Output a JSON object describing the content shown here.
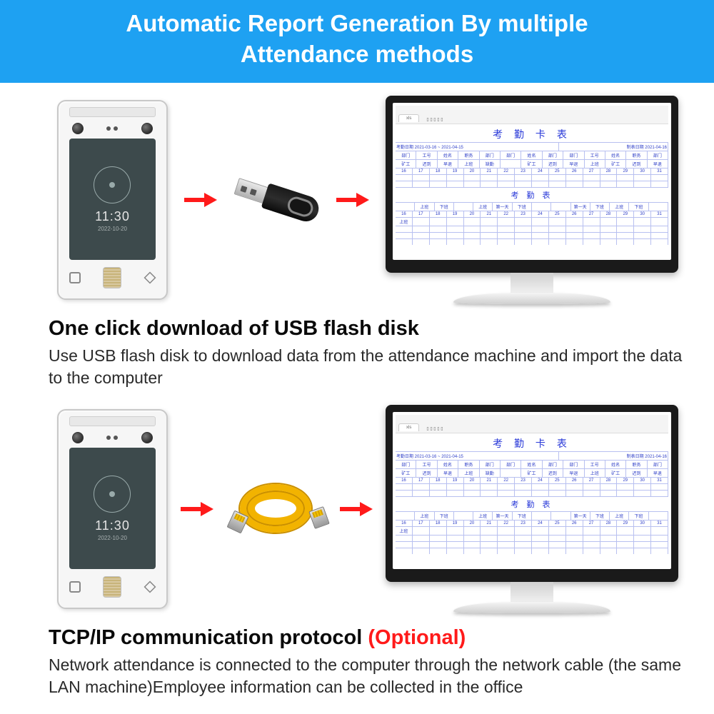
{
  "colors": {
    "header_bg": "#1ea1f2",
    "header_text": "#ffffff",
    "arrow": "#ff1a1a",
    "optional": "#ff1a1a",
    "spreadsheet_text": "#2838d8",
    "cable": "#f2b300",
    "body_text": "#2a2a2a"
  },
  "header": {
    "line1": "Automatic Report Generation By multiple",
    "line2": "Attendance methods"
  },
  "device": {
    "time": "11:30",
    "date": "2022-10-20"
  },
  "spreadsheet": {
    "title": "考 勤 卡 表",
    "subtitle": "考  勤  表",
    "meta_left": "考勤日期 2021-03-16 ~ 2021-04-15",
    "meta_right": "制表日期  2021-04-16",
    "header_cells": [
      "部门",
      "工号",
      "姓名",
      "职务",
      "部门",
      "部门",
      "姓名",
      "部门",
      "部门",
      "工号",
      "姓名",
      "职务",
      "部门"
    ],
    "row1": [
      "矿工",
      "迟到",
      "早退",
      "上班",
      "缺勤",
      "",
      "矿工",
      "迟到",
      "早退",
      "上班",
      "矿工",
      "迟到",
      "早退"
    ],
    "dates1": [
      "16",
      "17",
      "18",
      "19",
      "20",
      "21",
      "22",
      "23",
      "24",
      "25",
      "26",
      "27",
      "28",
      "29",
      "30",
      "31"
    ],
    "sub_header": [
      "",
      "上班",
      "下班",
      "",
      "上班",
      "第一天",
      "下班",
      "",
      "",
      "第一天",
      "下班",
      "上班",
      "下班",
      ""
    ],
    "dates2": [
      "16",
      "17",
      "18",
      "19",
      "20",
      "21",
      "22",
      "23",
      "24",
      "25",
      "26",
      "27",
      "28",
      "29",
      "30",
      "31"
    ],
    "sub_row": [
      "上班",
      "",
      "",
      "",
      "",
      "",
      "",
      "",
      "",
      "",
      "",
      "",
      "",
      "",
      "",
      ""
    ]
  },
  "section1": {
    "title": "One click download of USB flash disk",
    "body": "Use USB flash disk to download data from the attendance machine and import the data to the computer"
  },
  "section2": {
    "title": "TCP/IP communication protocol ",
    "optional": "(Optional)",
    "body": "Network attendance is connected to the computer through the network cable (the same LAN machine)Employee information can be collected in the office"
  }
}
